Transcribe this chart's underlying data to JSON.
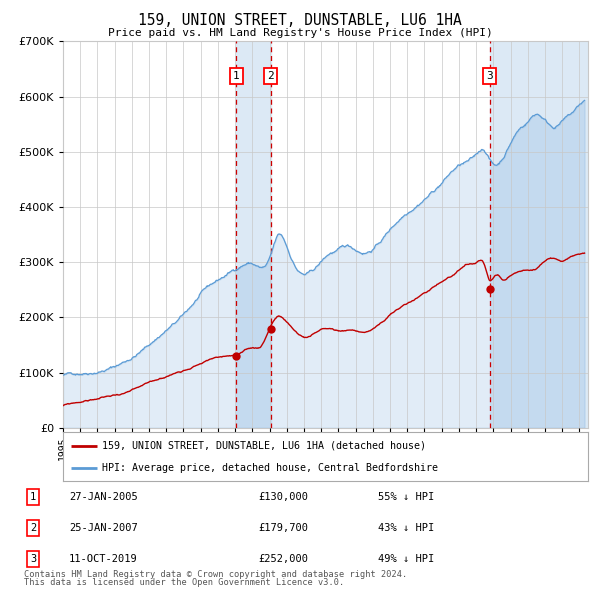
{
  "title": "159, UNION STREET, DUNSTABLE, LU6 1HA",
  "subtitle": "Price paid vs. HM Land Registry's House Price Index (HPI)",
  "legend_line1": "159, UNION STREET, DUNSTABLE, LU6 1HA (detached house)",
  "legend_line2": "HPI: Average price, detached house, Central Bedfordshire",
  "footer1": "Contains HM Land Registry data © Crown copyright and database right 2024.",
  "footer2": "This data is licensed under the Open Government Licence v3.0.",
  "sales": [
    {
      "label": "1",
      "date_str": "27-JAN-2005",
      "date_num": 2005.07,
      "price": 130000,
      "pct": "55% ↓ HPI"
    },
    {
      "label": "2",
      "date_str": "25-JAN-2007",
      "date_num": 2007.07,
      "price": 179700,
      "pct": "43% ↓ HPI"
    },
    {
      "label": "3",
      "date_str": "11-OCT-2019",
      "date_num": 2019.78,
      "price": 252000,
      "pct": "49% ↓ HPI"
    }
  ],
  "ylim": [
    0,
    700000
  ],
  "xlim_start": 1995.0,
  "xlim_end": 2025.5,
  "hpi_line_color": "#5b9bd5",
  "sale_color": "#c00000",
  "background_color": "#ffffff",
  "grid_color": "#c8c8c8",
  "vline_shade_color": "#dce9f5",
  "vline_color": "#cc0000",
  "hpi_keypoints": [
    [
      1995.0,
      95000
    ],
    [
      1996.0,
      100000
    ],
    [
      1997.0,
      108000
    ],
    [
      1998.0,
      118000
    ],
    [
      1999.0,
      135000
    ],
    [
      2000.0,
      158000
    ],
    [
      2001.0,
      185000
    ],
    [
      2002.0,
      210000
    ],
    [
      2003.0,
      245000
    ],
    [
      2004.0,
      268000
    ],
    [
      2005.07,
      289000
    ],
    [
      2006.0,
      300000
    ],
    [
      2007.0,
      305000
    ],
    [
      2007.5,
      345000
    ],
    [
      2008.0,
      325000
    ],
    [
      2008.5,
      290000
    ],
    [
      2009.0,
      275000
    ],
    [
      2009.5,
      280000
    ],
    [
      2010.0,
      295000
    ],
    [
      2010.5,
      310000
    ],
    [
      2011.0,
      315000
    ],
    [
      2011.5,
      320000
    ],
    [
      2012.0,
      315000
    ],
    [
      2012.5,
      312000
    ],
    [
      2013.0,
      320000
    ],
    [
      2014.0,
      355000
    ],
    [
      2015.0,
      390000
    ],
    [
      2016.0,
      420000
    ],
    [
      2017.0,
      450000
    ],
    [
      2018.0,
      480000
    ],
    [
      2019.0,
      495000
    ],
    [
      2019.5,
      505000
    ],
    [
      2019.78,
      490000
    ],
    [
      2020.0,
      480000
    ],
    [
      2020.5,
      490000
    ],
    [
      2021.0,
      520000
    ],
    [
      2021.5,
      545000
    ],
    [
      2022.0,
      560000
    ],
    [
      2022.5,
      575000
    ],
    [
      2023.0,
      565000
    ],
    [
      2023.5,
      555000
    ],
    [
      2024.0,
      565000
    ],
    [
      2024.5,
      575000
    ],
    [
      2025.0,
      590000
    ],
    [
      2025.3,
      598000
    ]
  ],
  "red_keypoints": [
    [
      1995.0,
      40000
    ],
    [
      1996.0,
      46000
    ],
    [
      1997.0,
      52000
    ],
    [
      1998.0,
      58000
    ],
    [
      1999.0,
      65000
    ],
    [
      2000.0,
      75000
    ],
    [
      2001.0,
      87000
    ],
    [
      2002.0,
      100000
    ],
    [
      2003.0,
      115000
    ],
    [
      2004.0,
      125000
    ],
    [
      2005.07,
      130000
    ],
    [
      2005.5,
      133000
    ],
    [
      2006.0,
      138000
    ],
    [
      2006.5,
      142000
    ],
    [
      2007.07,
      179700
    ],
    [
      2007.5,
      197000
    ],
    [
      2008.0,
      185000
    ],
    [
      2008.5,
      168000
    ],
    [
      2009.0,
      158000
    ],
    [
      2009.5,
      162000
    ],
    [
      2010.0,
      170000
    ],
    [
      2010.5,
      172000
    ],
    [
      2011.0,
      168000
    ],
    [
      2011.5,
      170000
    ],
    [
      2012.0,
      168000
    ],
    [
      2012.5,
      167000
    ],
    [
      2013.0,
      172000
    ],
    [
      2014.0,
      195000
    ],
    [
      2015.0,
      215000
    ],
    [
      2016.0,
      233000
    ],
    [
      2017.0,
      255000
    ],
    [
      2018.0,
      275000
    ],
    [
      2018.5,
      283000
    ],
    [
      2019.0,
      285000
    ],
    [
      2019.5,
      280000
    ],
    [
      2019.78,
      252000
    ],
    [
      2020.0,
      255000
    ],
    [
      2020.3,
      260000
    ],
    [
      2020.5,
      252000
    ],
    [
      2021.0,
      260000
    ],
    [
      2021.5,
      268000
    ],
    [
      2022.0,
      272000
    ],
    [
      2022.5,
      275000
    ],
    [
      2023.0,
      285000
    ],
    [
      2023.5,
      290000
    ],
    [
      2024.0,
      285000
    ],
    [
      2024.5,
      290000
    ],
    [
      2025.0,
      293000
    ],
    [
      2025.3,
      296000
    ]
  ]
}
